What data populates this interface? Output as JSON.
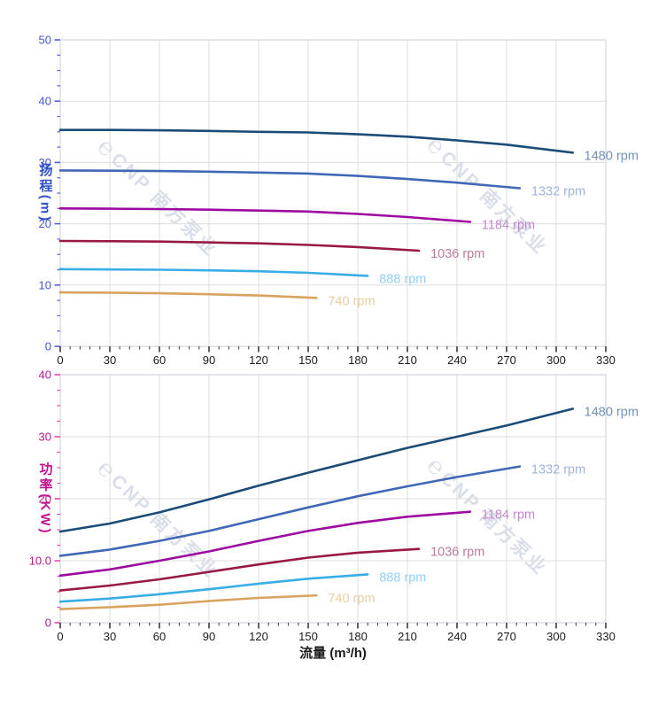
{
  "panel": {
    "background": "#ffffff",
    "grid_color": "#dddddd",
    "border_color": "#c9cdd4"
  },
  "watermark": {
    "logo": "℮",
    "text": "CNP 南方泵业",
    "color": "#d9dee9"
  },
  "chart_data": [
    {
      "type": "line",
      "name": "head-vs-flow",
      "title": "",
      "ylabel": {
        "text": "扬程",
        "unit": "(m)"
      },
      "xlabel": "",
      "xlim": [
        0,
        330
      ],
      "ylim": [
        0,
        50
      ],
      "x_ticks": [
        [
          0,
          "0"
        ],
        [
          30,
          "30"
        ],
        [
          60,
          "60"
        ],
        [
          90,
          "90"
        ],
        [
          120,
          "120"
        ],
        [
          150,
          "150"
        ],
        [
          180,
          "180"
        ],
        [
          210,
          "210"
        ],
        [
          240,
          "240"
        ],
        [
          270,
          "270"
        ],
        [
          300,
          "300"
        ],
        [
          330,
          "330"
        ]
      ],
      "y_ticks": [
        [
          0,
          "0"
        ],
        [
          10,
          "10"
        ],
        [
          20,
          "20"
        ],
        [
          30,
          "30"
        ],
        [
          40,
          "40"
        ],
        [
          50,
          "50"
        ]
      ],
      "x_minor_step": 6,
      "y_minor_step": 2.5,
      "grid": true,
      "axis_style": {
        "y_label_color": "#4457d0",
        "y_tick_color": "#4f63d6",
        "title_color": "#2d4fc8",
        "x_label_color": "#1b1b1b",
        "x_tick_color": "#3a3a3a"
      },
      "series": [
        {
          "name": "1480 rpm",
          "color": "#1b4b76",
          "label_color": "#7392bc",
          "points": [
            [
              0,
              35.3
            ],
            [
              30,
              35.3
            ],
            [
              60,
              35.25
            ],
            [
              90,
              35.15
            ],
            [
              120,
              35.0
            ],
            [
              150,
              34.9
            ],
            [
              180,
              34.6
            ],
            [
              210,
              34.2
            ],
            [
              240,
              33.6
            ],
            [
              270,
              32.9
            ],
            [
              310,
              31.6
            ]
          ]
        },
        {
          "name": "1332 rpm",
          "color": "#4168b6",
          "label_color": "#9fb3e2",
          "points": [
            [
              0,
              28.7
            ],
            [
              30,
              28.65
            ],
            [
              60,
              28.6
            ],
            [
              90,
              28.5
            ],
            [
              120,
              28.35
            ],
            [
              150,
              28.2
            ],
            [
              180,
              27.8
            ],
            [
              210,
              27.3
            ],
            [
              240,
              26.7
            ],
            [
              278,
              25.8
            ]
          ]
        },
        {
          "name": "1184 rpm",
          "color": "#9d09a1",
          "label_color": "#c289ce",
          "points": [
            [
              0,
              22.5
            ],
            [
              30,
              22.45
            ],
            [
              60,
              22.4
            ],
            [
              90,
              22.3
            ],
            [
              120,
              22.15
            ],
            [
              150,
              22.0
            ],
            [
              180,
              21.6
            ],
            [
              210,
              21.1
            ],
            [
              248,
              20.3
            ]
          ]
        },
        {
          "name": "1036 rpm",
          "color": "#981941",
          "label_color": "#ba7b9b",
          "points": [
            [
              0,
              17.2
            ],
            [
              30,
              17.15
            ],
            [
              60,
              17.1
            ],
            [
              90,
              16.95
            ],
            [
              120,
              16.8
            ],
            [
              150,
              16.55
            ],
            [
              180,
              16.2
            ],
            [
              217,
              15.6
            ]
          ]
        },
        {
          "name": "888 rpm",
          "color": "#39ade6",
          "label_color": "#92d1f4",
          "points": [
            [
              0,
              12.6
            ],
            [
              30,
              12.55
            ],
            [
              60,
              12.5
            ],
            [
              90,
              12.4
            ],
            [
              120,
              12.25
            ],
            [
              150,
              12.0
            ],
            [
              186,
              11.5
            ]
          ]
        },
        {
          "name": "740 rpm",
          "color": "#d9a35f",
          "label_color": "#e9cda4",
          "points": [
            [
              0,
              8.8
            ],
            [
              30,
              8.75
            ],
            [
              60,
              8.65
            ],
            [
              90,
              8.5
            ],
            [
              120,
              8.3
            ],
            [
              155,
              7.9
            ]
          ]
        }
      ]
    },
    {
      "type": "line",
      "name": "power-vs-flow",
      "title": "",
      "ylabel": {
        "text": "功率",
        "unit": "(KW)"
      },
      "xlabel": "流量 (m³/h)",
      "xlim": [
        0,
        330
      ],
      "ylim": [
        0,
        40
      ],
      "x_ticks": [
        [
          0,
          "0"
        ],
        [
          30,
          "30"
        ],
        [
          60,
          "60"
        ],
        [
          90,
          "90"
        ],
        [
          120,
          "120"
        ],
        [
          150,
          "150"
        ],
        [
          180,
          "180"
        ],
        [
          210,
          "210"
        ],
        [
          240,
          "240"
        ],
        [
          270,
          "270"
        ],
        [
          300,
          "300"
        ],
        [
          330,
          "330"
        ]
      ],
      "y_ticks": [
        [
          0,
          "0"
        ],
        [
          10,
          "10.0"
        ],
        [
          20,
          "20"
        ],
        [
          30,
          "30"
        ],
        [
          40,
          "40"
        ]
      ],
      "x_minor_step": 6,
      "y_minor_step": 2.5,
      "grid": true,
      "axis_style": {
        "y_label_color": "#b5198d",
        "y_tick_color": "#ec46ad",
        "title_color": "#c01290",
        "x_label_color": "#1b1b1b",
        "x_tick_color": "#3a3a3a"
      },
      "series": [
        {
          "name": "1480 rpm",
          "color": "#1b4b76",
          "label_color": "#7392bc",
          "points": [
            [
              0,
              14.7
            ],
            [
              30,
              16.0
            ],
            [
              60,
              17.8
            ],
            [
              90,
              19.9
            ],
            [
              120,
              22.1
            ],
            [
              150,
              24.2
            ],
            [
              180,
              26.2
            ],
            [
              210,
              28.2
            ],
            [
              240,
              30.0
            ],
            [
              270,
              31.8
            ],
            [
              310,
              34.5
            ]
          ]
        },
        {
          "name": "1332 rpm",
          "color": "#4168b6",
          "label_color": "#9fb3e2",
          "points": [
            [
              0,
              10.8
            ],
            [
              30,
              11.8
            ],
            [
              60,
              13.2
            ],
            [
              90,
              14.8
            ],
            [
              120,
              16.7
            ],
            [
              150,
              18.6
            ],
            [
              180,
              20.4
            ],
            [
              210,
              22.0
            ],
            [
              240,
              23.5
            ],
            [
              278,
              25.2
            ]
          ]
        },
        {
          "name": "1184 rpm",
          "color": "#9d09a1",
          "label_color": "#c289ce",
          "points": [
            [
              0,
              7.6
            ],
            [
              30,
              8.6
            ],
            [
              60,
              10.0
            ],
            [
              90,
              11.5
            ],
            [
              120,
              13.2
            ],
            [
              150,
              14.8
            ],
            [
              180,
              16.1
            ],
            [
              210,
              17.1
            ],
            [
              248,
              17.9
            ]
          ]
        },
        {
          "name": "1036 rpm",
          "color": "#981941",
          "label_color": "#ba7b9b",
          "points": [
            [
              0,
              5.2
            ],
            [
              30,
              6.0
            ],
            [
              60,
              7.0
            ],
            [
              90,
              8.2
            ],
            [
              120,
              9.4
            ],
            [
              150,
              10.5
            ],
            [
              180,
              11.3
            ],
            [
              217,
              11.9
            ]
          ]
        },
        {
          "name": "888 rpm",
          "color": "#39ade6",
          "label_color": "#92d1f4",
          "points": [
            [
              0,
              3.4
            ],
            [
              30,
              3.9
            ],
            [
              60,
              4.6
            ],
            [
              90,
              5.4
            ],
            [
              120,
              6.3
            ],
            [
              150,
              7.1
            ],
            [
              186,
              7.8
            ]
          ]
        },
        {
          "name": "740 rpm",
          "color": "#d9a35f",
          "label_color": "#e9cda4",
          "points": [
            [
              0,
              2.2
            ],
            [
              30,
              2.5
            ],
            [
              60,
              2.9
            ],
            [
              90,
              3.5
            ],
            [
              120,
              4.0
            ],
            [
              155,
              4.4
            ]
          ]
        }
      ]
    }
  ]
}
